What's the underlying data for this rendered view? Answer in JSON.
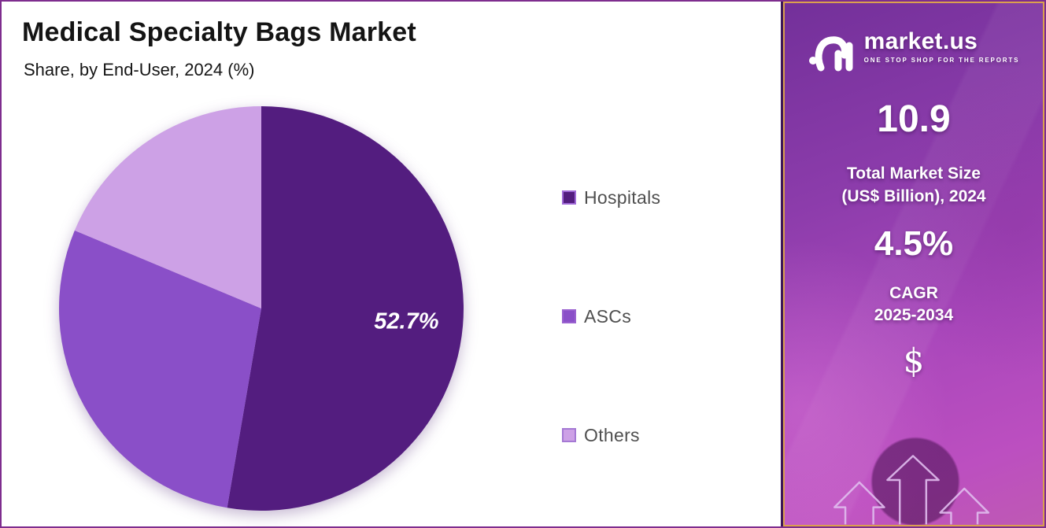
{
  "header": {
    "title": "Medical Specialty Bags Market",
    "subtitle": "Share, by End-User, 2024 (%)"
  },
  "chart_data": {
    "type": "pie",
    "title": "Medical Specialty Bags Market",
    "subtitle": "Share, by End-User, 2024 (%)",
    "unit": "%",
    "categories": [
      "Hospitals",
      "ASCs",
      "Others"
    ],
    "values": [
      52.7,
      28.6,
      18.7
    ],
    "slice_labels": [
      "52.7%",
      "",
      ""
    ],
    "colors": [
      "#531d7f",
      "#8a4fc8",
      "#cda1e6"
    ],
    "start_angle_deg": 0,
    "direction": "clockwise",
    "legend_position": "right"
  },
  "legend": {
    "swatch_border_colors": [
      "#a06ad8",
      "#9a62d0",
      "#a579d4"
    ]
  },
  "sidebar": {
    "brand": "market.us",
    "tagline": "ONE STOP SHOP FOR THE REPORTS",
    "market_size_value": "10.9",
    "market_size_label_line1": "Total Market Size",
    "market_size_label_line2": "(US$ Billion), 2024",
    "cagr_value": "4.5%",
    "cagr_label_line1": "CAGR",
    "cagr_label_line2": "2025-2034",
    "dollar_symbol": "$",
    "colors": {
      "border_gold": "#dba04e",
      "frame_purple": "#7e2d8e",
      "gradient_top": "#73309a",
      "gradient_bottom": "#bf59b4"
    }
  }
}
